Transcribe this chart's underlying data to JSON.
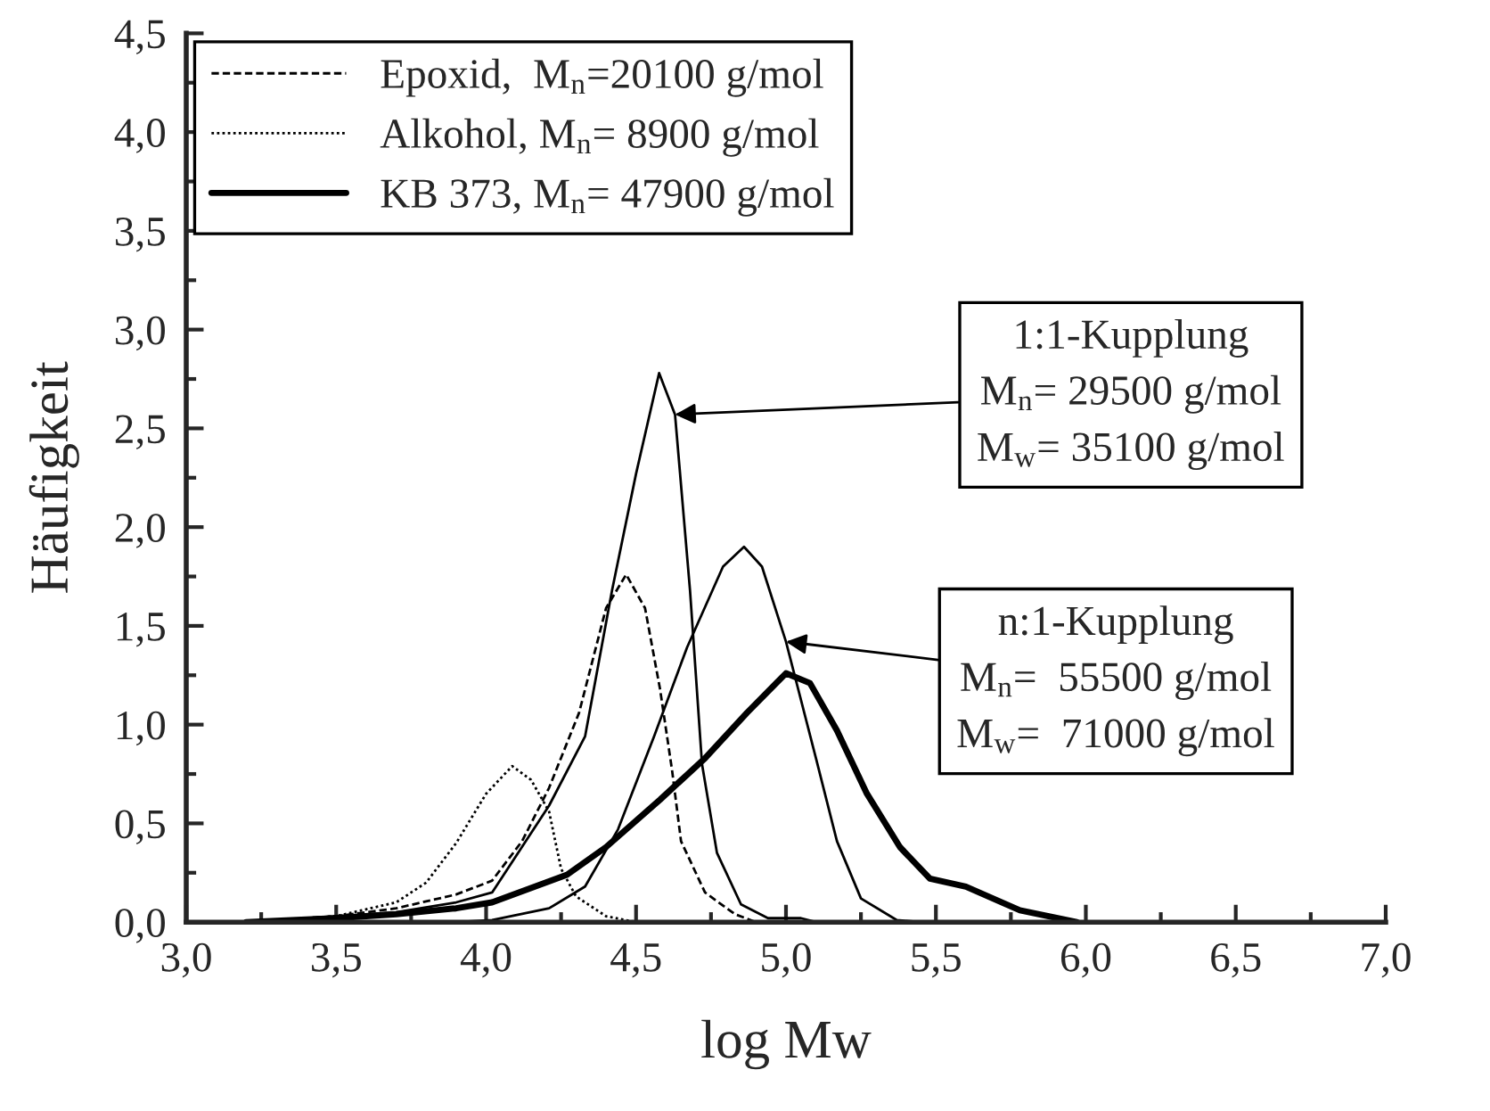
{
  "chart_data": {
    "type": "line",
    "xlabel": "log Mw",
    "ylabel": "Häufigkeit",
    "xlim": [
      3.0,
      7.0
    ],
    "ylim": [
      0.0,
      4.5
    ],
    "xticks": [
      {
        "value": 3.0,
        "label": "3,0"
      },
      {
        "value": 3.5,
        "label": "3,5"
      },
      {
        "value": 4.0,
        "label": "4,0"
      },
      {
        "value": 4.5,
        "label": "4,5"
      },
      {
        "value": 5.0,
        "label": "5,0"
      },
      {
        "value": 5.5,
        "label": "5,5"
      },
      {
        "value": 6.0,
        "label": "6,0"
      },
      {
        "value": 6.5,
        "label": "6,5"
      },
      {
        "value": 7.0,
        "label": "7,0"
      }
    ],
    "yticks": [
      {
        "value": 0.0,
        "label": "0,0"
      },
      {
        "value": 0.5,
        "label": "0,5"
      },
      {
        "value": 1.0,
        "label": "1,0"
      },
      {
        "value": 1.5,
        "label": "1,5"
      },
      {
        "value": 2.0,
        "label": "2,0"
      },
      {
        "value": 2.5,
        "label": "2,5"
      },
      {
        "value": 3.0,
        "label": "3,0"
      },
      {
        "value": 3.5,
        "label": "3,5"
      },
      {
        "value": 4.0,
        "label": "4,0"
      },
      {
        "value": 4.5,
        "label": "4,5"
      }
    ],
    "grid": false,
    "legend": "top left",
    "marker": "none",
    "series": [
      {
        "name": "Epoxid,  M$_{n}$=20100 g/mol",
        "color": "#000000",
        "line_style": "dashed",
        "x": [
          3.2,
          3.5,
          3.7,
          3.9,
          4.02,
          4.12,
          4.21,
          4.31,
          4.4,
          4.467,
          4.53,
          4.58,
          4.62,
          4.65,
          4.73,
          4.83,
          4.9
        ],
        "values": [
          0,
          0.03,
          0.07,
          0.14,
          0.21,
          0.41,
          0.68,
          1.06,
          1.59,
          1.76,
          1.59,
          1.18,
          0.77,
          0.41,
          0.15,
          0.04,
          0
        ]
      },
      {
        "name": "Alkohol, M$_{n}$= 8900 g/mol",
        "color": "#000000",
        "line_style": "dotted",
        "x": [
          3.2,
          3.5,
          3.7,
          3.8,
          3.9,
          4.0,
          4.087,
          4.15,
          4.21,
          4.25,
          4.3,
          4.4,
          4.5
        ],
        "values": [
          0,
          0.03,
          0.1,
          0.2,
          0.4,
          0.65,
          0.79,
          0.72,
          0.56,
          0.27,
          0.13,
          0.03,
          0
        ]
      },
      {
        "name": "KB 373, M$_{n}$= 47900 g/mol",
        "color": "#000000",
        "line_style": "solid",
        "x": [
          3.2,
          3.5,
          3.7,
          3.9,
          4.02,
          4.27,
          4.4,
          4.58,
          4.73,
          4.87,
          5.0,
          5.08,
          5.17,
          5.27,
          5.38,
          5.48,
          5.6,
          5.78,
          5.97
        ],
        "values": [
          0,
          0.02,
          0.04,
          0.07,
          0.1,
          0.24,
          0.38,
          0.62,
          0.83,
          1.06,
          1.26,
          1.21,
          0.97,
          0.65,
          0.38,
          0.22,
          0.18,
          0.06,
          0
        ]
      },
      {
        "color": "#000000",
        "line_style": "solid",
        "x": [
          3.2,
          3.5,
          3.7,
          3.9,
          4.02,
          4.21,
          4.33,
          4.42,
          4.5,
          4.577,
          4.63,
          4.68,
          4.72,
          4.77,
          4.85,
          4.94,
          5.05,
          5.1
        ],
        "values": [
          0,
          0.03,
          0.05,
          0.1,
          0.15,
          0.59,
          0.94,
          1.68,
          2.27,
          2.78,
          2.57,
          1.68,
          0.8,
          0.35,
          0.09,
          0.02,
          0.02,
          0
        ]
      },
      {
        "color": "#000000",
        "line_style": "solid",
        "x": [
          3.5,
          3.8,
          3.9,
          4.02,
          4.21,
          4.33,
          4.44,
          4.56,
          4.67,
          4.79,
          4.86,
          4.92,
          5.0,
          5.1,
          5.17,
          5.25,
          5.37,
          5.45
        ],
        "values": [
          0,
          0,
          0,
          0.01,
          0.07,
          0.18,
          0.47,
          0.94,
          1.39,
          1.8,
          1.9,
          1.8,
          1.42,
          0.83,
          0.41,
          0.12,
          0.01,
          0
        ]
      }
    ],
    "annotations": [
      {
        "text": "1:1-Kupplung\nM$_{n}$= 29500 g/mol\nM$_{w}$= 35100 g/mol",
        "x": 4.63,
        "y": 2.57
      },
      {
        "text": "n:1-Kupplung\nM$_{n}$=  55500 g/mol\nM$_{w}$=  71000 g/mol",
        "x": 5.0,
        "y": 1.42
      }
    ]
  }
}
